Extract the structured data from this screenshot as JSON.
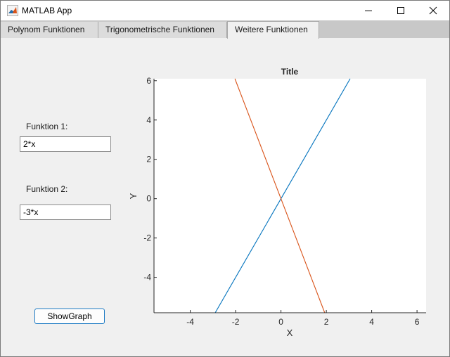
{
  "window": {
    "title": "MATLAB App"
  },
  "tabs": [
    {
      "label": "Polynom Funktionen",
      "selected": false
    },
    {
      "label": "Trigonometrische Funktionen",
      "selected": false
    },
    {
      "label": "Weitere Funktionen",
      "selected": true
    }
  ],
  "form": {
    "function1_label": "Funktion 1:",
    "function1_value": "2*x",
    "function2_label": "Funktion 2:",
    "function2_value": "-3*x",
    "show_button_label": "ShowGraph"
  },
  "chart_data": {
    "type": "line",
    "title": "Title",
    "xlabel": "X",
    "ylabel": "Y",
    "xlim": [
      -5.6,
      6.4
    ],
    "ylim": [
      -5.8,
      6.1
    ],
    "xticks": [
      -4,
      -2,
      0,
      2,
      4,
      6
    ],
    "yticks": [
      -4,
      -2,
      0,
      2,
      4,
      6
    ],
    "series": [
      {
        "color": "#0072bd",
        "x": [
          -2.9,
          3.05
        ],
        "y": [
          -5.8,
          6.1
        ]
      },
      {
        "color": "#d95319",
        "x": [
          -2.03,
          1.93
        ],
        "y": [
          6.1,
          -5.8
        ]
      }
    ]
  },
  "colors": {
    "line1": "#0072bd",
    "line2": "#d95319",
    "button_border": "#1f7cc5"
  }
}
